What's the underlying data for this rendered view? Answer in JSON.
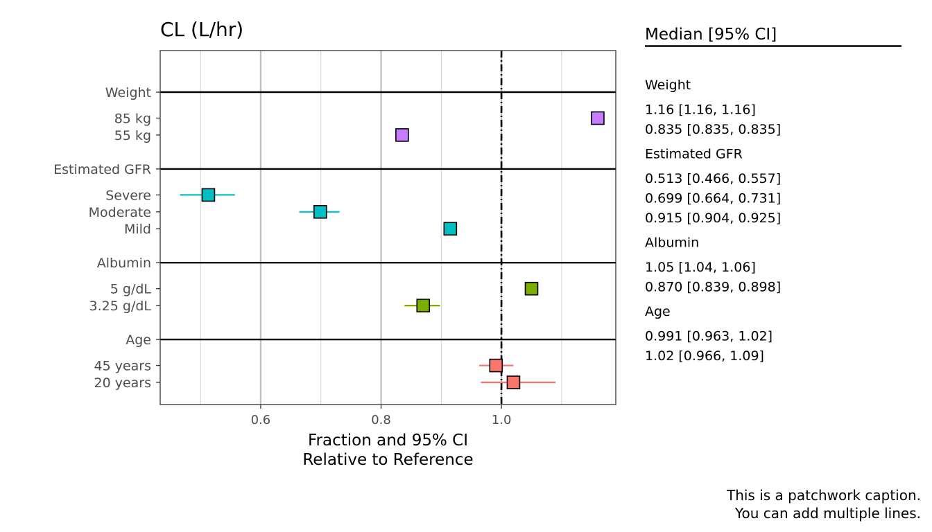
{
  "chart_data": {
    "type": "scatter",
    "subtype": "forest",
    "title": "CL (L/hr)",
    "xlabel": "Fraction and 95% CI",
    "xlabel_line2": "Relative to Reference",
    "ylabel": "",
    "xlim": [
      0.433,
      1.19
    ],
    "x_ticks": [
      0.6,
      0.8,
      1.0
    ],
    "x_tick_labels": [
      "0.6",
      "0.8",
      "1.0"
    ],
    "reference_line": 1.0,
    "grid": true,
    "legend": "none",
    "groups": [
      {
        "name": "Weight",
        "color": "#C77CFF",
        "rows": [
          {
            "label": "85 kg",
            "median": 1.16,
            "lower": 1.16,
            "upper": 1.16,
            "text": "1.16 [1.16, 1.16]"
          },
          {
            "label": "55 kg",
            "median": 0.835,
            "lower": 0.835,
            "upper": 0.835,
            "text": "0.835 [0.835, 0.835]"
          }
        ]
      },
      {
        "name": "Estimated GFR",
        "color": "#00BFC4",
        "rows": [
          {
            "label": "Severe",
            "median": 0.513,
            "lower": 0.466,
            "upper": 0.557,
            "text": "0.513 [0.466, 0.557]"
          },
          {
            "label": "Moderate",
            "median": 0.699,
            "lower": 0.664,
            "upper": 0.731,
            "text": "0.699 [0.664, 0.731]"
          },
          {
            "label": "Mild",
            "median": 0.915,
            "lower": 0.904,
            "upper": 0.925,
            "text": "0.915 [0.904, 0.925]"
          }
        ]
      },
      {
        "name": "Albumin",
        "color": "#7CAE00",
        "rows": [
          {
            "label": "5 g/dL",
            "median": 1.05,
            "lower": 1.04,
            "upper": 1.06,
            "text": "1.05 [1.04, 1.06]"
          },
          {
            "label": "3.25 g/dL",
            "median": 0.87,
            "lower": 0.839,
            "upper": 0.898,
            "text": "0.870 [0.839, 0.898]"
          }
        ]
      },
      {
        "name": "Age",
        "color": "#F8766D",
        "rows": [
          {
            "label": "45 years",
            "median": 0.991,
            "lower": 0.963,
            "upper": 1.02,
            "text": "0.991 [0.963, 1.02]"
          },
          {
            "label": "20 years",
            "median": 1.02,
            "lower": 0.966,
            "upper": 1.09,
            "text": "1.02 [0.966, 1.09]"
          }
        ]
      }
    ]
  },
  "table": {
    "header": "Median [95% CI]"
  },
  "caption": {
    "line1": "This is a patchwork caption.",
    "line2": "You can add multiple lines."
  }
}
